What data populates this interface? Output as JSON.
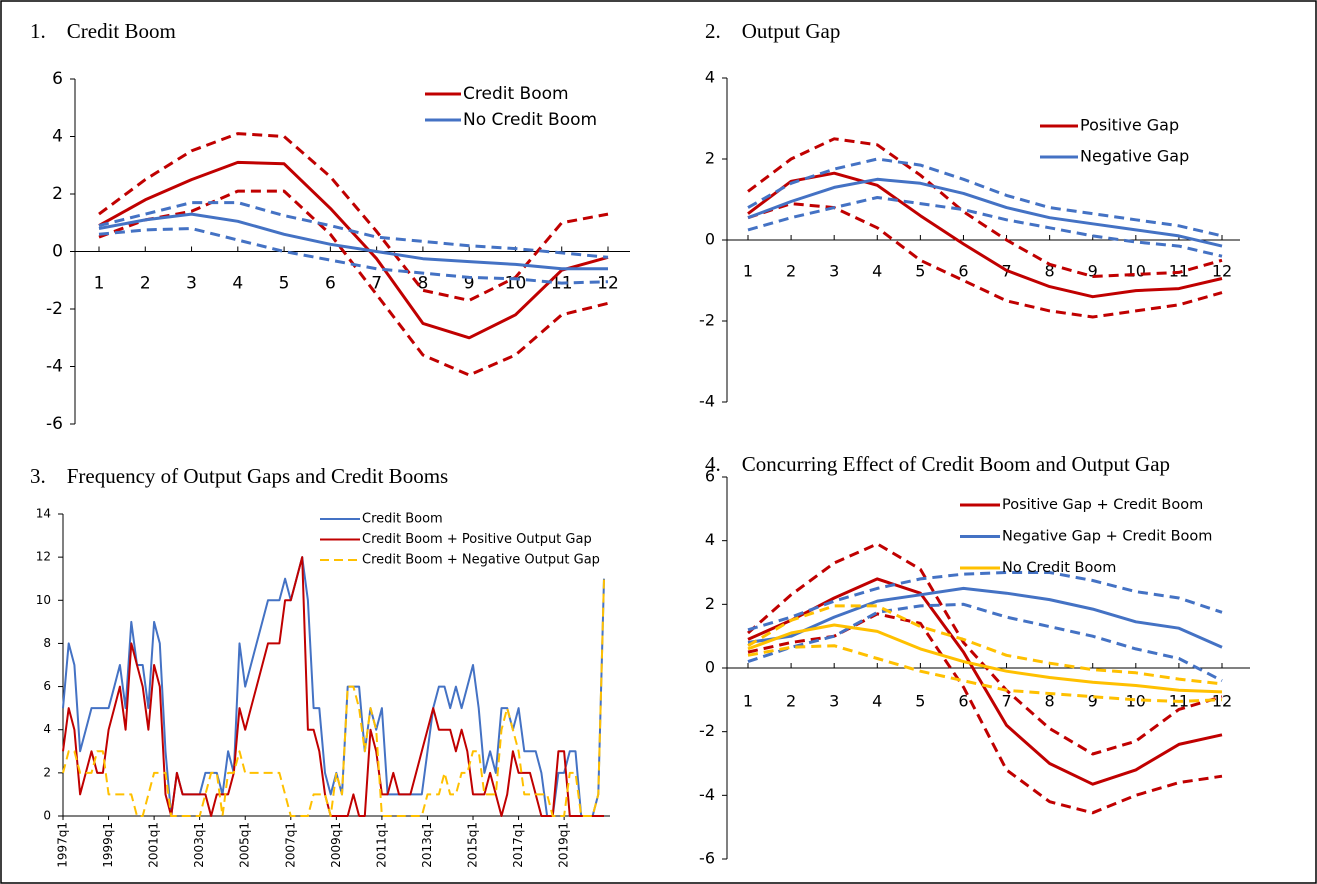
{
  "chart_data": [
    {
      "type": "line",
      "title": "1.    Credit Boom",
      "categories": [
        "1",
        "2",
        "3",
        "4",
        "5",
        "6",
        "7",
        "8",
        "9",
        "10",
        "11",
        "12"
      ],
      "ylim": [
        -6,
        6
      ],
      "yticks": [
        -6,
        -4,
        -2,
        0,
        2,
        4,
        6
      ],
      "series": [
        {
          "name": "Credit Boom",
          "color": "#c00000",
          "values": [
            0.9,
            1.8,
            2.5,
            3.1,
            3.05,
            1.5,
            -0.25,
            -2.5,
            -3.0,
            -2.2,
            -0.65,
            -0.2
          ]
        },
        {
          "color": "#c00000",
          "dashed": true,
          "values": [
            1.3,
            2.5,
            3.5,
            4.1,
            4.0,
            2.6,
            0.7,
            -1.35,
            -1.7,
            -0.9,
            1.0,
            1.3
          ]
        },
        {
          "color": "#c00000",
          "dashed": true,
          "values": [
            0.5,
            1.1,
            1.4,
            2.1,
            2.1,
            0.6,
            -1.5,
            -3.6,
            -4.3,
            -3.6,
            -2.2,
            -1.8
          ]
        },
        {
          "name": "No Credit Boom",
          "color": "#4472c4",
          "values": [
            0.8,
            1.1,
            1.3,
            1.05,
            0.6,
            0.25,
            0.0,
            -0.25,
            -0.35,
            -0.45,
            -0.6,
            -0.6
          ]
        },
        {
          "color": "#4472c4",
          "dashed": true,
          "values": [
            0.9,
            1.3,
            1.7,
            1.7,
            1.25,
            0.9,
            0.5,
            0.35,
            0.2,
            0.1,
            -0.05,
            -0.2
          ]
        },
        {
          "color": "#4472c4",
          "dashed": true,
          "values": [
            0.6,
            0.75,
            0.8,
            0.4,
            0.0,
            -0.3,
            -0.6,
            -0.75,
            -0.9,
            -0.95,
            -1.1,
            -1.05
          ]
        }
      ]
    },
    {
      "type": "line",
      "title": "2.    Output Gap",
      "categories": [
        "1",
        "2",
        "3",
        "4",
        "5",
        "6",
        "7",
        "8",
        "9",
        "10",
        "11",
        "12"
      ],
      "ylim": [
        -4,
        4
      ],
      "yticks": [
        -4,
        -2,
        0,
        2,
        4
      ],
      "series": [
        {
          "name": "Positive Gap",
          "color": "#c00000",
          "values": [
            0.65,
            1.45,
            1.65,
            1.35,
            0.6,
            -0.1,
            -0.75,
            -1.15,
            -1.4,
            -1.25,
            -1.2,
            -0.95
          ]
        },
        {
          "color": "#c00000",
          "dashed": true,
          "values": [
            1.2,
            2.0,
            2.5,
            2.35,
            1.6,
            0.7,
            0.0,
            -0.6,
            -0.9,
            -0.85,
            -0.8,
            -0.5
          ]
        },
        {
          "color": "#c00000",
          "dashed": true,
          "values": [
            0.55,
            0.9,
            0.8,
            0.3,
            -0.5,
            -1.0,
            -1.5,
            -1.75,
            -1.9,
            -1.75,
            -1.6,
            -1.3
          ]
        },
        {
          "name": "Negative Gap",
          "color": "#4472c4",
          "values": [
            0.55,
            0.95,
            1.3,
            1.5,
            1.4,
            1.15,
            0.8,
            0.55,
            0.4,
            0.25,
            0.1,
            -0.15
          ]
        },
        {
          "color": "#4472c4",
          "dashed": true,
          "values": [
            0.8,
            1.4,
            1.75,
            2.0,
            1.85,
            1.5,
            1.1,
            0.8,
            0.65,
            0.5,
            0.35,
            0.1
          ]
        },
        {
          "color": "#4472c4",
          "dashed": true,
          "values": [
            0.25,
            0.55,
            0.8,
            1.05,
            0.9,
            0.75,
            0.5,
            0.3,
            0.1,
            -0.05,
            -0.15,
            -0.4
          ]
        }
      ]
    },
    {
      "type": "line",
      "title": "3.    Frequency of Output Gaps and Credit Booms",
      "categories": [
        "1997q1",
        null,
        null,
        null,
        null,
        null,
        null,
        null,
        "1999q1",
        null,
        null,
        null,
        null,
        null,
        null,
        null,
        "2001q1",
        null,
        null,
        null,
        null,
        null,
        null,
        null,
        "2003q1",
        null,
        null,
        null,
        null,
        null,
        null,
        null,
        "2005q1",
        null,
        null,
        null,
        null,
        null,
        null,
        null,
        "2007q1",
        null,
        null,
        null,
        null,
        null,
        null,
        null,
        "2009q1",
        null,
        null,
        null,
        null,
        null,
        null,
        null,
        "2011q1",
        null,
        null,
        null,
        null,
        null,
        null,
        null,
        "2013q1",
        null,
        null,
        null,
        null,
        null,
        null,
        null,
        "2015q1",
        null,
        null,
        null,
        null,
        null,
        null,
        null,
        "2017q1",
        null,
        null,
        null,
        null,
        null,
        null,
        null,
        "2019q1",
        null,
        null,
        null,
        null,
        null,
        null,
        null
      ],
      "ylim": [
        0,
        14
      ],
      "yticks": [
        0,
        2,
        4,
        6,
        8,
        10,
        12,
        14
      ],
      "series": [
        {
          "name": "Credit Boom",
          "color": "#4472c4",
          "values": [
            5,
            8,
            7,
            3,
            4,
            5,
            5,
            5,
            5,
            6,
            7,
            5,
            9,
            7,
            7,
            5,
            9,
            8,
            3,
            0,
            2,
            1,
            1,
            1,
            1,
            2,
            2,
            2,
            1,
            3,
            2,
            8,
            6,
            7,
            8,
            9,
            10,
            10,
            10,
            11,
            10,
            11,
            12,
            10,
            5,
            5,
            2,
            1,
            2,
            1,
            6,
            6,
            6,
            3,
            5,
            4,
            5,
            1,
            1,
            1,
            1,
            1,
            1,
            1,
            3,
            5,
            6,
            6,
            5,
            6,
            5,
            6,
            7,
            5,
            2,
            3,
            2,
            5,
            5,
            4,
            5,
            3,
            3,
            3,
            2,
            0,
            0,
            2,
            2,
            3,
            3,
            0,
            0,
            0,
            1,
            11
          ]
        },
        {
          "name": "Credit Boom + Positive Output Gap",
          "color": "#c00000",
          "values": [
            3,
            5,
            4,
            1,
            2,
            3,
            2,
            2,
            4,
            5,
            6,
            4,
            8,
            7,
            6,
            4,
            7,
            6,
            1,
            0,
            2,
            1,
            1,
            1,
            1,
            1,
            0,
            1,
            1,
            1,
            2,
            5,
            4,
            5,
            6,
            7,
            8,
            8,
            8,
            10,
            10,
            11,
            12,
            4,
            4,
            3,
            1,
            0,
            0,
            0,
            0,
            1,
            0,
            0,
            4,
            3,
            1,
            1,
            2,
            1,
            1,
            1,
            2,
            3,
            4,
            5,
            4,
            4,
            4,
            3,
            4,
            3,
            1,
            1,
            1,
            2,
            1,
            0,
            1,
            3,
            2,
            2,
            2,
            1,
            0,
            0,
            0,
            3,
            3,
            0,
            0,
            0,
            0,
            0,
            0,
            0
          ]
        },
        {
          "name": "Credit Boom + Negative Output Gap",
          "color": "#ffc000",
          "dashed": true,
          "values": [
            2,
            3,
            3,
            2,
            2,
            2,
            3,
            3,
            1,
            1,
            1,
            1,
            1,
            0,
            0,
            1,
            2,
            2,
            2,
            0,
            0,
            0,
            0,
            0,
            0,
            1,
            2,
            2,
            0,
            2,
            2,
            3,
            2,
            2,
            2,
            2,
            2,
            2,
            2,
            1,
            0,
            0,
            0,
            0,
            1,
            1,
            1,
            0,
            2,
            1,
            6,
            6,
            5,
            3,
            5,
            4,
            0,
            0,
            0,
            0,
            0,
            0,
            0,
            0,
            1,
            1,
            1,
            2,
            1,
            1,
            2,
            2,
            3,
            3,
            1,
            1,
            1,
            4,
            5,
            4,
            3,
            1,
            1,
            1,
            1,
            1,
            0,
            0,
            0,
            2,
            2,
            0,
            0,
            0,
            1,
            11
          ]
        }
      ]
    },
    {
      "type": "line",
      "title": "4.    Concurring Effect of Credit Boom and Output Gap",
      "categories": [
        "1",
        "2",
        "3",
        "4",
        "5",
        "6",
        "7",
        "8",
        "9",
        "10",
        "11",
        "12"
      ],
      "ylim": [
        -6,
        6
      ],
      "yticks": [
        -6,
        -4,
        -2,
        0,
        2,
        4,
        6
      ],
      "series": [
        {
          "name": "Positive Gap + Credit Boom",
          "color": "#c00000",
          "values": [
            0.9,
            1.5,
            2.2,
            2.8,
            2.35,
            0.5,
            -1.8,
            -3.0,
            -3.65,
            -3.2,
            -2.4,
            -2.1
          ]
        },
        {
          "color": "#c00000",
          "dashed": true,
          "values": [
            1.1,
            2.3,
            3.3,
            3.9,
            3.1,
            0.8,
            -0.7,
            -1.9,
            -2.7,
            -2.3,
            -1.3,
            -0.9
          ]
        },
        {
          "color": "#c00000",
          "dashed": true,
          "values": [
            0.5,
            0.8,
            1.0,
            1.7,
            1.4,
            -0.6,
            -3.2,
            -4.2,
            -4.55,
            -4.0,
            -3.6,
            -3.4
          ]
        },
        {
          "name": "Negative Gap + Credit Boom",
          "color": "#4472c4",
          "values": [
            0.8,
            1.0,
            1.6,
            2.1,
            2.3,
            2.5,
            2.35,
            2.15,
            1.85,
            1.45,
            1.25,
            0.65
          ]
        },
        {
          "color": "#4472c4",
          "dashed": true,
          "values": [
            1.2,
            1.6,
            2.1,
            2.5,
            2.8,
            2.95,
            3.0,
            3.0,
            2.75,
            2.4,
            2.2,
            1.75
          ]
        },
        {
          "color": "#4472c4",
          "dashed": true,
          "values": [
            0.2,
            0.65,
            1.0,
            1.75,
            1.95,
            2.0,
            1.6,
            1.3,
            1.0,
            0.6,
            0.3,
            -0.4
          ]
        },
        {
          "name": "No Credit Boom",
          "color": "#ffc000",
          "values": [
            0.6,
            1.1,
            1.35,
            1.15,
            0.6,
            0.2,
            -0.1,
            -0.3,
            -0.45,
            -0.55,
            -0.7,
            -0.75
          ]
        },
        {
          "color": "#ffc000",
          "dashed": true,
          "values": [
            0.7,
            1.5,
            1.95,
            1.95,
            1.3,
            0.9,
            0.4,
            0.15,
            -0.05,
            -0.15,
            -0.35,
            -0.5
          ]
        },
        {
          "color": "#ffc000",
          "dashed": true,
          "values": [
            0.4,
            0.65,
            0.7,
            0.3,
            -0.1,
            -0.4,
            -0.7,
            -0.8,
            -0.9,
            -1.0,
            -1.05,
            -1.0
          ]
        }
      ]
    }
  ]
}
